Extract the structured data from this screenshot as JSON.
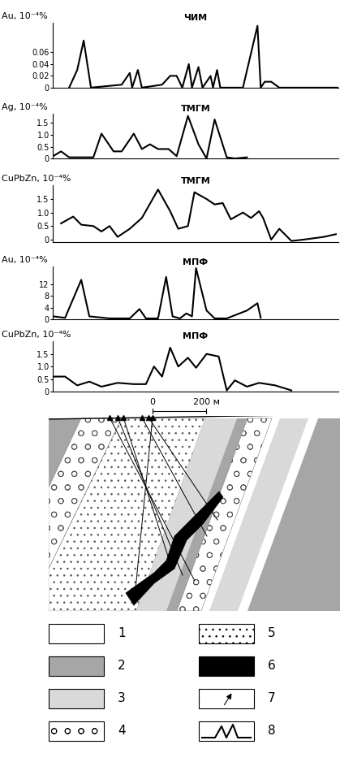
{
  "chart_data": [
    {
      "type": "line",
      "title": "ЧИМ",
      "y_label": "Au, 10⁻⁴%",
      "color": "#000000",
      "line_style": "solid",
      "tick_labels": "y",
      "grid": false,
      "x": [
        -309,
        -279,
        -255,
        -228,
        -114,
        -84,
        -75,
        -54,
        -39,
        36,
        66,
        90,
        111,
        135,
        147,
        171,
        186,
        216,
        225,
        240,
        252,
        336,
        390,
        402,
        417,
        441,
        471,
        486,
        690
      ],
      "values": [
        0,
        0.03,
        0.08,
        0,
        0.005,
        0.025,
        0,
        0.03,
        0,
        0.005,
        0.02,
        0.02,
        0,
        0.04,
        0,
        0.035,
        0,
        0.02,
        0,
        0.03,
        0,
        0,
        0.105,
        0,
        0.01,
        0.01,
        0,
        0,
        0
      ],
      "xlim": [
        -370,
        690
      ],
      "ylim": [
        0,
        0.11
      ],
      "yticks": [
        0,
        0.02,
        0.04,
        0.06
      ]
    },
    {
      "type": "line",
      "title": "ТМГМ",
      "y_label": "Ag, 10⁻⁴%",
      "color": "#000000",
      "line_style": "solid",
      "tick_labels": "y",
      "grid": false,
      "x": [
        -369,
        -339,
        -309,
        -264,
        -219,
        -189,
        -144,
        -114,
        -69,
        -39,
        -9,
        21,
        60,
        90,
        132,
        171,
        201,
        231,
        276,
        306,
        351
      ],
      "values": [
        0.1,
        0.3,
        0.05,
        0.05,
        0.05,
        1.05,
        0.3,
        0.3,
        1.05,
        0.4,
        0.6,
        0.4,
        0.4,
        0.1,
        1.8,
        0.6,
        0,
        1.65,
        0.05,
        0,
        0.05
      ],
      "xlim": [
        -370,
        690
      ],
      "ylim": [
        0,
        1.9
      ],
      "yticks": [
        0,
        0.5,
        {
          "value": 1,
          "label": "1.0"
        },
        1.5
      ]
    },
    {
      "type": "line",
      "title": "ТМГМ",
      "y_label": "CuPbZn, 10⁻⁴%",
      "color": "#000000",
      "line_style": "solid",
      "tick_labels": "y",
      "grid": false,
      "x": [
        -339,
        -294,
        -264,
        -219,
        -189,
        -159,
        -129,
        -84,
        -39,
        21,
        66,
        96,
        132,
        156,
        201,
        231,
        261,
        291,
        336,
        366,
        396,
        411,
        441,
        471,
        516,
        561,
        636,
        681
      ],
      "values": [
        0.6,
        0.85,
        0.55,
        0.5,
        0.3,
        0.5,
        0.1,
        0.4,
        0.8,
        1.85,
        1.05,
        0.4,
        0.5,
        1.75,
        1.5,
        1.3,
        1.35,
        0.75,
        1.0,
        0.8,
        1.05,
        0.8,
        0,
        0.4,
        -0.05,
        0,
        0.1,
        0.2
      ],
      "xlim": [
        -370,
        690
      ],
      "ylim": [
        -0.1,
        2.0
      ],
      "yticks": [
        0,
        0.5,
        {
          "value": 1,
          "label": "1.0"
        },
        1.5
      ]
    },
    {
      "type": "line",
      "title": "МПФ",
      "y_label": "Au, 10⁻⁴%",
      "color": "#000000",
      "line_style": "solid",
      "tick_labels": "y",
      "grid": false,
      "x": [
        -369,
        -324,
        -264,
        -234,
        -159,
        -84,
        -48,
        -24,
        21,
        51,
        75,
        102,
        126,
        147,
        162,
        201,
        231,
        276,
        351,
        390,
        402
      ],
      "values": [
        1,
        0.5,
        13.5,
        1,
        0.3,
        0.3,
        3.5,
        0.3,
        0.3,
        14.5,
        1,
        0.3,
        2,
        1,
        17.5,
        3,
        0.3,
        0.3,
        3,
        5.5,
        0.5
      ],
      "xlim": [
        -370,
        690
      ],
      "ylim": [
        0,
        18
      ],
      "yticks": [
        0,
        4,
        8,
        12
      ]
    },
    {
      "type": "line",
      "title": "МПФ",
      "y_label": "CuPbZn, 10⁻⁴%",
      "color": "#000000",
      "line_style": "solid",
      "tick_labels": "y",
      "grid": false,
      "x": [
        -369,
        -324,
        -279,
        -234,
        -189,
        -129,
        -69,
        -24,
        6,
        36,
        66,
        96,
        132,
        162,
        201,
        246,
        276,
        306,
        351,
        396,
        456,
        516
      ],
      "values": [
        0.6,
        0.6,
        0.25,
        0.4,
        0.2,
        0.35,
        0.3,
        0.3,
        1.0,
        0.6,
        1.75,
        1.0,
        1.35,
        0.95,
        1.5,
        1.4,
        0.05,
        0.45,
        0.2,
        0.35,
        0.25,
        0.05
      ],
      "xlim": [
        -370,
        690
      ],
      "ylim": [
        0,
        2.0
      ],
      "yticks": [
        0,
        0.5,
        {
          "value": 1,
          "label": "1.0"
        },
        1.5
      ]
    }
  ],
  "scale_bar": [
    {
      "value": 0,
      "label": "0"
    },
    {
      "value": 200,
      "label": "200 м"
    }
  ],
  "section_legend": [
    "1",
    "2",
    "3",
    "4",
    "5",
    "6",
    "7",
    "8"
  ]
}
